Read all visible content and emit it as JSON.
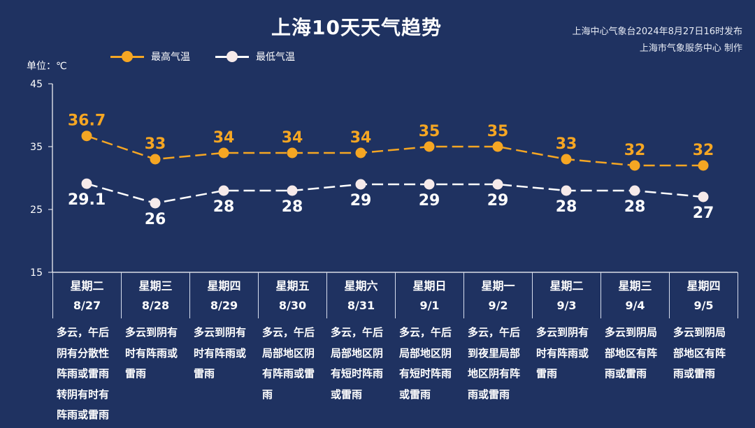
{
  "header": {
    "title": "上海10天天气趋势",
    "publisher_line1": "上海中心气象台2024年8月27日16时发布",
    "publisher_line2": "上海市气象服务中心 制作"
  },
  "unit_label": "单位：℃",
  "colors": {
    "background": "#1f3261",
    "high": "#f5a623",
    "low": "#ffffff"
  },
  "legend": {
    "high_label": "最高气温",
    "low_label": "最低气温"
  },
  "chart_data": {
    "type": "line",
    "categories": [
      "8/27",
      "8/28",
      "8/29",
      "8/30",
      "8/31",
      "9/1",
      "9/2",
      "9/3",
      "9/4",
      "9/5"
    ],
    "weekdays": [
      "星期二",
      "星期三",
      "星期四",
      "星期五",
      "星期六",
      "星期日",
      "星期一",
      "星期二",
      "星期三",
      "星期四"
    ],
    "series": [
      {
        "name": "最高气温",
        "values": [
          36.7,
          33,
          34,
          34,
          34,
          35,
          35,
          33,
          32,
          32
        ],
        "labels": [
          "36.7",
          "33",
          "34",
          "34",
          "34",
          "35",
          "35",
          "33",
          "32",
          "32"
        ],
        "color": "#f5a623"
      },
      {
        "name": "最低气温",
        "values": [
          29.1,
          26,
          28,
          28,
          29,
          29,
          29,
          28,
          28,
          27
        ],
        "labels": [
          "29.1",
          "26",
          "28",
          "28",
          "29",
          "29",
          "29",
          "28",
          "28",
          "27"
        ],
        "color": "#ffffff"
      }
    ],
    "ylim": [
      15,
      45
    ],
    "yticks": [
      "15",
      "25",
      "35",
      "45"
    ],
    "ylabel": "单位：℃",
    "line_style": "dashed",
    "legend_position": "top-left"
  },
  "days": [
    {
      "weekday": "星期二",
      "date": "8/27",
      "weather": "多云，午后阴有分散性阵雨或雷雨转阴有时有阵雨或雷雨"
    },
    {
      "weekday": "星期三",
      "date": "8/28",
      "weather": "多云到阴有时有阵雨或雷雨"
    },
    {
      "weekday": "星期四",
      "date": "8/29",
      "weather": "多云到阴有时有阵雨或雷雨"
    },
    {
      "weekday": "星期五",
      "date": "8/30",
      "weather": "多云，午后局部地区阴有阵雨或雷雨"
    },
    {
      "weekday": "星期六",
      "date": "8/31",
      "weather": "多云，午后局部地区阴有短时阵雨或雷雨"
    },
    {
      "weekday": "星期日",
      "date": "9/1",
      "weather": "多云，午后局部地区阴有短时阵雨或雷雨"
    },
    {
      "weekday": "星期一",
      "date": "9/2",
      "weather": "多云，午后到夜里局部地区阴有阵雨或雷雨"
    },
    {
      "weekday": "星期二",
      "date": "9/3",
      "weather": "多云到阴有时有阵雨或雷雨"
    },
    {
      "weekday": "星期三",
      "date": "9/4",
      "weather": "多云到阴局部地区有阵雨或雷雨"
    },
    {
      "weekday": "星期四",
      "date": "9/5",
      "weather": "多云到阴局部地区有阵雨或雷雨"
    }
  ]
}
